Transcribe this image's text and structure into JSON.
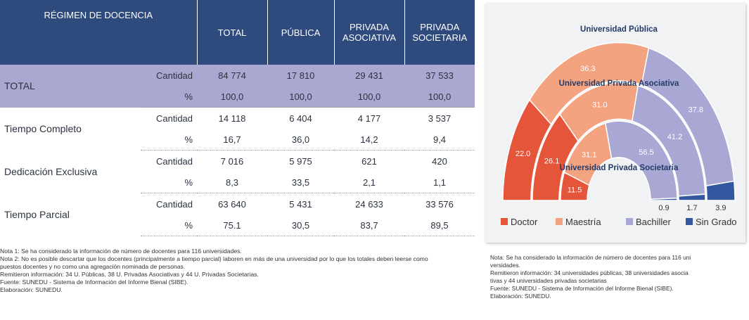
{
  "table": {
    "header": [
      "RÉGIMEN DE DOCENCIA",
      "TOTAL",
      "PÚBLICA",
      "PRIVADA ASOCIATIVA",
      "PRIVADA SOCIETARIA"
    ],
    "rows": [
      {
        "label": "TOTAL",
        "sub": [
          {
            "measure": "Cantidad",
            "values": [
              "84 774",
              "17 810",
              "29 431",
              "37 533"
            ]
          },
          {
            "measure": "%",
            "values": [
              "100,0",
              "100,0",
              "100,0",
              "100,0"
            ]
          }
        ]
      },
      {
        "label": "Tiempo Completo",
        "sub": [
          {
            "measure": "Cantidad",
            "values": [
              "14 118",
              "6 404",
              "4 177",
              "3 537"
            ]
          },
          {
            "measure": "%",
            "values": [
              "16,7",
              "36,0",
              "14,2",
              "9,4"
            ]
          }
        ]
      },
      {
        "label": "Dedicación Exclusiva",
        "sub": [
          {
            "measure": "Cantidad",
            "values": [
              "7 016",
              "5 975",
              "621",
              "420"
            ]
          },
          {
            "measure": "%",
            "values": [
              "8,3",
              "33,5",
              "2,1",
              "1,1"
            ]
          }
        ]
      },
      {
        "label": "Tiempo Parcial",
        "sub": [
          {
            "measure": "Cantidad",
            "values": [
              "63 640",
              "5 431",
              "24 633",
              "33 576"
            ]
          },
          {
            "measure": "%",
            "values": [
              "75.1",
              "30,5",
              "83,7",
              "89,5"
            ]
          }
        ]
      }
    ]
  },
  "notes": [
    "Nota 1: Se ha considerado la información de número de docentes para 116 universidades.",
    "Nota 2: No es posible descartar que los docentes (principalmente a tiempo parcial) laboren en más de una universidad por lo que los totales deben leerse como",
    "puestos docentes y no como una agregación nominada de personas.",
    "Remitieron información: 34 U. Públicas, 38 U. Privadas Asociativas y 44 U. Privadas Societarias.",
    "Fuente: SUNEDU - Sistema de Información del Informe Bienal (SIBE).",
    "Elaboración: SUNEDU."
  ],
  "chart_data": {
    "type": "semi-donut",
    "categories": [
      "Doctor",
      "Maestría",
      "Bachiller",
      "Sin Grado"
    ],
    "colors": [
      "#e5553a",
      "#f4a380",
      "#a9a8d4",
      "#33589f"
    ],
    "series": [
      {
        "name": "Universidad Pública",
        "values": [
          22.0,
          36.3,
          37.8,
          3.9
        ],
        "value_labels": [
          "22.0",
          "36.3",
          "37.8",
          "3.9"
        ]
      },
      {
        "name": "Universidad Privada Asociativa",
        "values": [
          26.1,
          31.0,
          41.2,
          1.7
        ],
        "value_labels": [
          "26.1",
          "31.0",
          "41.2",
          "1.7"
        ]
      },
      {
        "name": "Universidad Privada Societaria",
        "values": [
          11.5,
          31.1,
          56.5,
          0.9
        ],
        "value_labels": [
          "11.5",
          "31.1",
          "56.5",
          "0.9"
        ]
      }
    ],
    "notes": [
      "Nota: Se ha considerado la información de número de docentes para 116 uni",
      "versidades.",
      "Remitieron información: 34 universidades públicas, 38 universidades asocia",
      "tivas y 44 universidades privadas societarias",
      "Fuente: SUNEDU - Sistema de Información del Informe Bienal (SIBE).",
      "Elaboración: SUNEDU."
    ]
  }
}
